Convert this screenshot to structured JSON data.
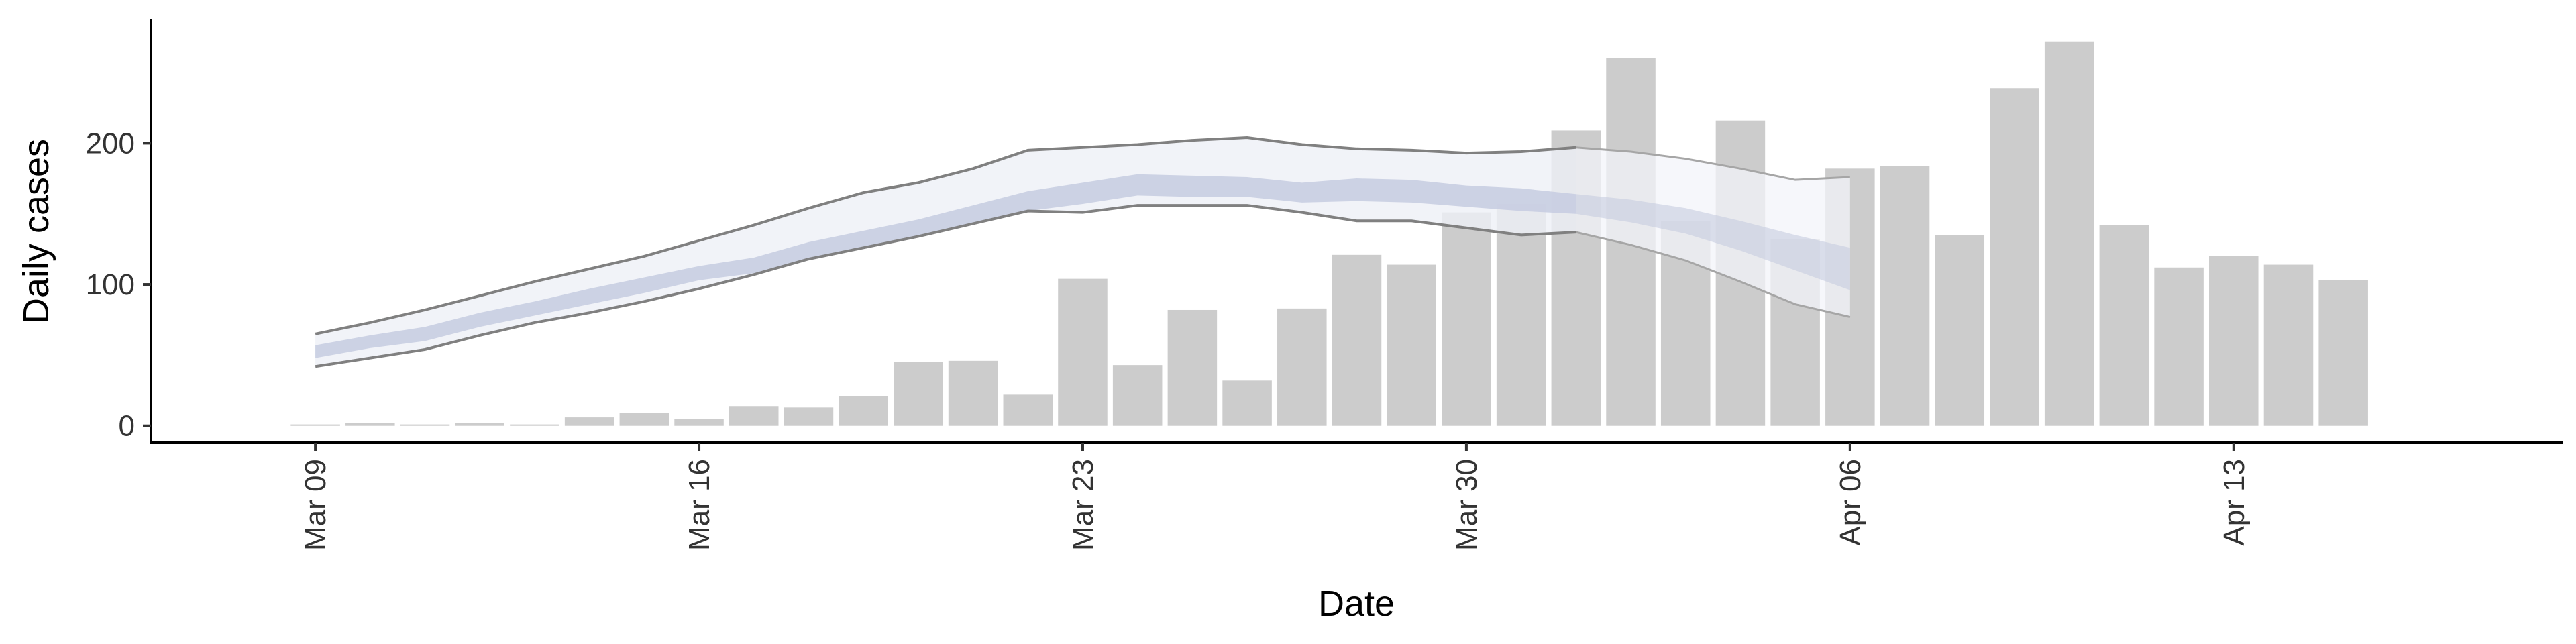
{
  "chart_data": {
    "type": "bar",
    "xlabel": "Date",
    "ylabel": "Daily cases",
    "x_ticks": [
      {
        "date": "2020-03-09",
        "label": "Mar 09"
      },
      {
        "date": "2020-03-16",
        "label": "Mar 16"
      },
      {
        "date": "2020-03-23",
        "label": "Mar 23"
      },
      {
        "date": "2020-03-30",
        "label": "Mar 30"
      },
      {
        "date": "2020-04-06",
        "label": "Apr 06"
      },
      {
        "date": "2020-04-13",
        "label": "Apr 13"
      }
    ],
    "y_ticks": [
      0,
      100,
      200
    ],
    "xlim": [
      "2020-03-06",
      "2020-04-19"
    ],
    "ylim": [
      -12,
      288
    ],
    "grid": false,
    "colors": {
      "bars": "#cccccc",
      "outer_band": "#eef0f6",
      "inner_band": "#c6cbe0",
      "outline": "#808080",
      "projection_band": "#f3f4f9",
      "projection_outline": "#a6a6a6"
    },
    "bars": {
      "dates": [
        "2020-03-09",
        "2020-03-10",
        "2020-03-11",
        "2020-03-12",
        "2020-03-13",
        "2020-03-14",
        "2020-03-15",
        "2020-03-16",
        "2020-03-17",
        "2020-03-18",
        "2020-03-19",
        "2020-03-20",
        "2020-03-21",
        "2020-03-22",
        "2020-03-23",
        "2020-03-24",
        "2020-03-25",
        "2020-03-26",
        "2020-03-27",
        "2020-03-28",
        "2020-03-29",
        "2020-03-30",
        "2020-03-31",
        "2020-04-01",
        "2020-04-02",
        "2020-04-03",
        "2020-04-04",
        "2020-04-05",
        "2020-04-06",
        "2020-04-07",
        "2020-04-08",
        "2020-04-09",
        "2020-04-10",
        "2020-04-11",
        "2020-04-12",
        "2020-04-13",
        "2020-04-14",
        "2020-04-15"
      ],
      "values": [
        1,
        2,
        1,
        2,
        1,
        6,
        9,
        5,
        14,
        13,
        21,
        45,
        46,
        22,
        104,
        43,
        82,
        32,
        83,
        121,
        114,
        151,
        157,
        209,
        260,
        145,
        216,
        132,
        182,
        184,
        135,
        239,
        272,
        142,
        112,
        120,
        114,
        103
      ]
    },
    "estimate": {
      "dates": [
        "2020-03-09",
        "2020-03-10",
        "2020-03-11",
        "2020-03-12",
        "2020-03-13",
        "2020-03-14",
        "2020-03-15",
        "2020-03-16",
        "2020-03-17",
        "2020-03-18",
        "2020-03-19",
        "2020-03-20",
        "2020-03-21",
        "2020-03-22",
        "2020-03-23",
        "2020-03-24",
        "2020-03-25",
        "2020-03-26",
        "2020-03-27",
        "2020-03-28",
        "2020-03-29",
        "2020-03-30",
        "2020-03-31",
        "2020-04-01"
      ],
      "outer_upper": [
        65,
        73,
        82,
        92,
        102,
        111,
        120,
        131,
        142,
        154,
        165,
        172,
        182,
        195,
        197,
        199,
        202,
        204,
        199,
        196,
        195,
        193,
        194,
        197
      ],
      "outer_lower": [
        42,
        48,
        54,
        64,
        73,
        80,
        88,
        97,
        107,
        118,
        126,
        134,
        143,
        152,
        151,
        156,
        156,
        156,
        151,
        145,
        145,
        140,
        135,
        137
      ],
      "inner_upper": [
        57,
        64,
        70,
        80,
        88,
        97,
        105,
        113,
        119,
        130,
        138,
        146,
        156,
        166,
        172,
        178,
        177,
        176,
        172,
        175,
        174,
        170,
        168,
        164
      ],
      "inner_lower": [
        48,
        55,
        60,
        70,
        78,
        86,
        94,
        103,
        108,
        118,
        126,
        134,
        143,
        152,
        157,
        163,
        162,
        162,
        158,
        159,
        158,
        155,
        152,
        150
      ]
    },
    "projection": {
      "dates": [
        "2020-04-01",
        "2020-04-02",
        "2020-04-03",
        "2020-04-04",
        "2020-04-05",
        "2020-04-06"
      ],
      "outer_upper": [
        197,
        194,
        189,
        182,
        174,
        176
      ],
      "outer_lower": [
        137,
        128,
        117,
        102,
        86,
        77
      ],
      "inner_upper": [
        164,
        160,
        154,
        145,
        135,
        126
      ],
      "inner_lower": [
        150,
        144,
        136,
        124,
        110,
        96
      ]
    }
  }
}
